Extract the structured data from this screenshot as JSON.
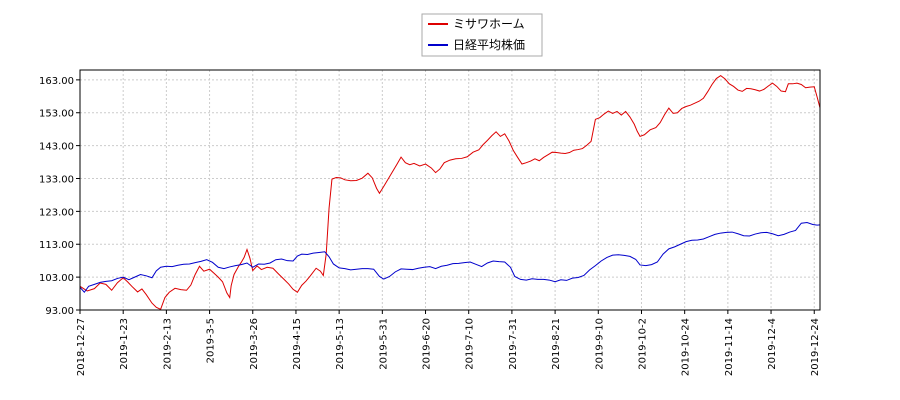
{
  "chart_data": {
    "type": "line",
    "title": "",
    "xlabel": "",
    "ylabel": "",
    "x_ticks": [
      "2018-12-27",
      "2019-1-23",
      "2019-2-13",
      "2019-3-5",
      "2019-3-26",
      "2019-4-15",
      "2019-5-13",
      "2019-5-31",
      "2019-6-20",
      "2019-7-10",
      "2019-7-31",
      "2019-8-21",
      "2019-9-10",
      "2019-10-2",
      "2019-10-24",
      "2019-11-14",
      "2019-12-4",
      "2019-12-24"
    ],
    "y_ticks": [
      "93.00",
      "103.00",
      "113.00",
      "123.00",
      "133.00",
      "143.00",
      "153.00",
      "163.00"
    ],
    "ylim": [
      93,
      166
    ],
    "grid": true,
    "legend_position": "top-center",
    "series": [
      {
        "name": "ミサワホーム",
        "color": "#dd0000",
        "points": [
          [
            0,
            100.2
          ],
          [
            0.5,
            98.8
          ],
          [
            1,
            99.5
          ],
          [
            1.4,
            101.2
          ],
          [
            1.8,
            100.8
          ],
          [
            2.2,
            99.0
          ],
          [
            2.6,
            101.3
          ],
          [
            3,
            102.8
          ],
          [
            3.3,
            101.6
          ],
          [
            3.6,
            100.2
          ],
          [
            4,
            98.5
          ],
          [
            4.3,
            99.4
          ],
          [
            4.6,
            97.7
          ],
          [
            5,
            95.1
          ],
          [
            5.3,
            93.8
          ],
          [
            5.6,
            93.2
          ],
          [
            5.9,
            96.8
          ],
          [
            6.2,
            98.4
          ],
          [
            6.6,
            99.6
          ],
          [
            7,
            99.2
          ],
          [
            7.4,
            99.0
          ],
          [
            7.7,
            100.6
          ],
          [
            8,
            103.8
          ],
          [
            8.3,
            106.3
          ],
          [
            8.6,
            104.8
          ],
          [
            9,
            105.4
          ],
          [
            9.3,
            104.2
          ],
          [
            9.6,
            103.0
          ],
          [
            9.9,
            101.6
          ],
          [
            10.2,
            98.2
          ],
          [
            10.4,
            96.8
          ],
          [
            10.5,
            100.4
          ],
          [
            10.7,
            103.8
          ],
          [
            11,
            106.2
          ],
          [
            11.2,
            107.5
          ],
          [
            11.4,
            109.0
          ],
          [
            11.6,
            111.4
          ],
          [
            11.8,
            108.8
          ],
          [
            12,
            105.0
          ],
          [
            12.3,
            106.4
          ],
          [
            12.6,
            105.3
          ],
          [
            13,
            106.0
          ],
          [
            13.4,
            105.7
          ],
          [
            13.8,
            103.9
          ],
          [
            14.2,
            102.2
          ],
          [
            14.5,
            100.9
          ],
          [
            14.8,
            99.3
          ],
          [
            15.1,
            98.4
          ],
          [
            15.4,
            100.5
          ],
          [
            15.7,
            101.8
          ],
          [
            16,
            103.4
          ],
          [
            16.4,
            105.7
          ],
          [
            16.7,
            104.8
          ],
          [
            16.9,
            103.5
          ],
          [
            17.1,
            110.0
          ],
          [
            17.3,
            124.0
          ],
          [
            17.5,
            132.8
          ],
          [
            17.8,
            133.3
          ],
          [
            18.1,
            133.2
          ],
          [
            18.4,
            132.6
          ],
          [
            18.8,
            132.3
          ],
          [
            19.2,
            132.4
          ],
          [
            19.6,
            133.1
          ],
          [
            20,
            134.6
          ],
          [
            20.3,
            133.2
          ],
          [
            20.6,
            130.0
          ],
          [
            20.8,
            128.5
          ],
          [
            21.1,
            130.6
          ],
          [
            21.4,
            132.8
          ],
          [
            21.7,
            135.0
          ],
          [
            22,
            137.2
          ],
          [
            22.3,
            139.5
          ],
          [
            22.6,
            137.8
          ],
          [
            22.9,
            137.2
          ],
          [
            23.2,
            137.6
          ],
          [
            23.6,
            136.8
          ],
          [
            24,
            137.4
          ],
          [
            24.4,
            136.2
          ],
          [
            24.7,
            134.8
          ],
          [
            25,
            135.9
          ],
          [
            25.3,
            137.8
          ],
          [
            25.7,
            138.6
          ],
          [
            26.1,
            139.0
          ],
          [
            26.5,
            139.1
          ],
          [
            26.9,
            139.6
          ],
          [
            27.3,
            141.0
          ],
          [
            27.7,
            141.7
          ],
          [
            28,
            143.3
          ],
          [
            28.3,
            144.6
          ],
          [
            28.6,
            146.0
          ],
          [
            28.9,
            147.2
          ],
          [
            29.2,
            145.8
          ],
          [
            29.5,
            146.6
          ],
          [
            29.8,
            144.4
          ],
          [
            30.1,
            141.5
          ],
          [
            30.4,
            139.4
          ],
          [
            30.7,
            137.4
          ],
          [
            31,
            137.8
          ],
          [
            31.3,
            138.3
          ],
          [
            31.6,
            139.0
          ],
          [
            31.9,
            138.4
          ],
          [
            32.2,
            139.4
          ],
          [
            32.5,
            140.2
          ],
          [
            32.8,
            141.0
          ],
          [
            33.1,
            140.9
          ],
          [
            33.4,
            140.7
          ],
          [
            33.7,
            140.6
          ],
          [
            34,
            140.9
          ],
          [
            34.3,
            141.6
          ],
          [
            34.6,
            141.8
          ],
          [
            34.9,
            142.1
          ],
          [
            35.2,
            143.1
          ],
          [
            35.5,
            144.3
          ],
          [
            35.8,
            151.0
          ],
          [
            36.1,
            151.5
          ],
          [
            36.4,
            152.6
          ],
          [
            36.7,
            153.5
          ],
          [
            37,
            152.8
          ],
          [
            37.3,
            153.4
          ],
          [
            37.6,
            152.3
          ],
          [
            37.9,
            153.4
          ],
          [
            38.2,
            151.7
          ],
          [
            38.5,
            149.5
          ],
          [
            38.7,
            147.4
          ],
          [
            38.9,
            145.8
          ],
          [
            39.2,
            146.3
          ],
          [
            39.6,
            147.8
          ],
          [
            40,
            148.5
          ],
          [
            40.3,
            150.0
          ],
          [
            40.6,
            152.4
          ],
          [
            40.9,
            154.4
          ],
          [
            41.2,
            152.8
          ],
          [
            41.5,
            153.0
          ],
          [
            41.8,
            154.3
          ],
          [
            42.1,
            154.9
          ],
          [
            42.4,
            155.3
          ],
          [
            42.7,
            155.9
          ],
          [
            43,
            156.5
          ],
          [
            43.3,
            157.4
          ],
          [
            43.6,
            159.4
          ],
          [
            43.9,
            161.6
          ],
          [
            44.2,
            163.4
          ],
          [
            44.5,
            164.3
          ],
          [
            44.8,
            163.3
          ],
          [
            45.1,
            161.8
          ],
          [
            45.4,
            161.0
          ],
          [
            45.7,
            159.9
          ],
          [
            46,
            159.5
          ],
          [
            46.3,
            160.4
          ],
          [
            46.6,
            160.3
          ],
          [
            46.9,
            160.0
          ],
          [
            47.2,
            159.6
          ],
          [
            47.5,
            160.1
          ],
          [
            47.8,
            161.1
          ],
          [
            48.1,
            162.0
          ],
          [
            48.4,
            161.0
          ],
          [
            48.7,
            159.6
          ],
          [
            49,
            159.4
          ],
          [
            49.2,
            161.8
          ],
          [
            49.5,
            161.8
          ],
          [
            49.8,
            162.0
          ],
          [
            50.1,
            161.6
          ],
          [
            50.4,
            160.6
          ],
          [
            50.7,
            160.8
          ],
          [
            51,
            160.9
          ],
          [
            51.2,
            157.8
          ],
          [
            51.4,
            154.5
          ]
        ]
      },
      {
        "name": "日経平均株価",
        "color": "#0000cc",
        "points": [
          [
            0,
            99.9
          ],
          [
            0.3,
            98.4
          ],
          [
            0.6,
            100.2
          ],
          [
            1,
            100.8
          ],
          [
            1.4,
            101.4
          ],
          [
            1.8,
            101.7
          ],
          [
            2.2,
            101.9
          ],
          [
            2.6,
            102.6
          ],
          [
            3,
            103.0
          ],
          [
            3.4,
            102.2
          ],
          [
            3.8,
            103.0
          ],
          [
            4.2,
            103.8
          ],
          [
            4.6,
            103.4
          ],
          [
            5,
            102.8
          ],
          [
            5.3,
            104.9
          ],
          [
            5.6,
            106.0
          ],
          [
            6,
            106.3
          ],
          [
            6.4,
            106.2
          ],
          [
            6.8,
            106.6
          ],
          [
            7.2,
            106.9
          ],
          [
            7.6,
            107.0
          ],
          [
            8,
            107.4
          ],
          [
            8.4,
            107.8
          ],
          [
            8.8,
            108.3
          ],
          [
            9.2,
            107.5
          ],
          [
            9.6,
            106.0
          ],
          [
            10,
            105.6
          ],
          [
            10.4,
            106.1
          ],
          [
            10.8,
            106.5
          ],
          [
            11.2,
            106.8
          ],
          [
            11.6,
            107.3
          ],
          [
            12,
            106.0
          ],
          [
            12.4,
            107.0
          ],
          [
            12.8,
            106.9
          ],
          [
            13.2,
            107.3
          ],
          [
            13.6,
            108.3
          ],
          [
            14,
            108.5
          ],
          [
            14.4,
            108.0
          ],
          [
            14.8,
            107.9
          ],
          [
            15.1,
            109.4
          ],
          [
            15.4,
            110.0
          ],
          [
            15.8,
            109.9
          ],
          [
            16.2,
            110.3
          ],
          [
            16.6,
            110.5
          ],
          [
            17,
            110.7
          ],
          [
            17.3,
            109.2
          ],
          [
            17.6,
            107.0
          ],
          [
            18,
            105.8
          ],
          [
            18.4,
            105.6
          ],
          [
            18.8,
            105.2
          ],
          [
            19.2,
            105.4
          ],
          [
            19.6,
            105.6
          ],
          [
            20,
            105.6
          ],
          [
            20.4,
            105.4
          ],
          [
            20.8,
            103.2
          ],
          [
            21.1,
            102.4
          ],
          [
            21.5,
            103.2
          ],
          [
            21.9,
            104.6
          ],
          [
            22.3,
            105.5
          ],
          [
            22.7,
            105.4
          ],
          [
            23.1,
            105.3
          ],
          [
            23.5,
            105.7
          ],
          [
            23.9,
            106.0
          ],
          [
            24.3,
            106.2
          ],
          [
            24.7,
            105.6
          ],
          [
            25.1,
            106.3
          ],
          [
            25.5,
            106.6
          ],
          [
            25.9,
            107.1
          ],
          [
            26.3,
            107.2
          ],
          [
            26.7,
            107.4
          ],
          [
            27.1,
            107.6
          ],
          [
            27.5,
            106.9
          ],
          [
            27.9,
            106.2
          ],
          [
            28.3,
            107.3
          ],
          [
            28.7,
            107.9
          ],
          [
            29.1,
            107.7
          ],
          [
            29.5,
            107.6
          ],
          [
            29.9,
            106.0
          ],
          [
            30.2,
            103.2
          ],
          [
            30.6,
            102.3
          ],
          [
            31,
            102.1
          ],
          [
            31.4,
            102.5
          ],
          [
            31.8,
            102.3
          ],
          [
            32.2,
            102.3
          ],
          [
            32.6,
            102.1
          ],
          [
            33,
            101.6
          ],
          [
            33.4,
            102.2
          ],
          [
            33.8,
            102.0
          ],
          [
            34.2,
            102.7
          ],
          [
            34.6,
            102.9
          ],
          [
            35,
            103.5
          ],
          [
            35.4,
            105.2
          ],
          [
            35.8,
            106.5
          ],
          [
            36.2,
            107.9
          ],
          [
            36.6,
            109.0
          ],
          [
            37,
            109.7
          ],
          [
            37.4,
            109.8
          ],
          [
            37.8,
            109.6
          ],
          [
            38.2,
            109.3
          ],
          [
            38.6,
            108.4
          ],
          [
            38.9,
            106.7
          ],
          [
            39.3,
            106.5
          ],
          [
            39.7,
            106.8
          ],
          [
            40.1,
            107.6
          ],
          [
            40.5,
            110.0
          ],
          [
            40.9,
            111.6
          ],
          [
            41.3,
            112.2
          ],
          [
            41.7,
            113.0
          ],
          [
            42.1,
            113.8
          ],
          [
            42.5,
            114.2
          ],
          [
            42.9,
            114.3
          ],
          [
            43.3,
            114.6
          ],
          [
            43.7,
            115.3
          ],
          [
            44.1,
            116.0
          ],
          [
            44.5,
            116.4
          ],
          [
            44.9,
            116.6
          ],
          [
            45.3,
            116.7
          ],
          [
            45.7,
            116.2
          ],
          [
            46.1,
            115.6
          ],
          [
            46.5,
            115.5
          ],
          [
            46.9,
            116.1
          ],
          [
            47.3,
            116.5
          ],
          [
            47.7,
            116.6
          ],
          [
            48.1,
            116.2
          ],
          [
            48.5,
            115.6
          ],
          [
            48.9,
            116.0
          ],
          [
            49.3,
            116.7
          ],
          [
            49.7,
            117.2
          ],
          [
            50.1,
            119.4
          ],
          [
            50.5,
            119.6
          ],
          [
            50.9,
            119.0
          ],
          [
            51.2,
            118.8
          ],
          [
            51.4,
            118.9
          ]
        ]
      }
    ]
  }
}
